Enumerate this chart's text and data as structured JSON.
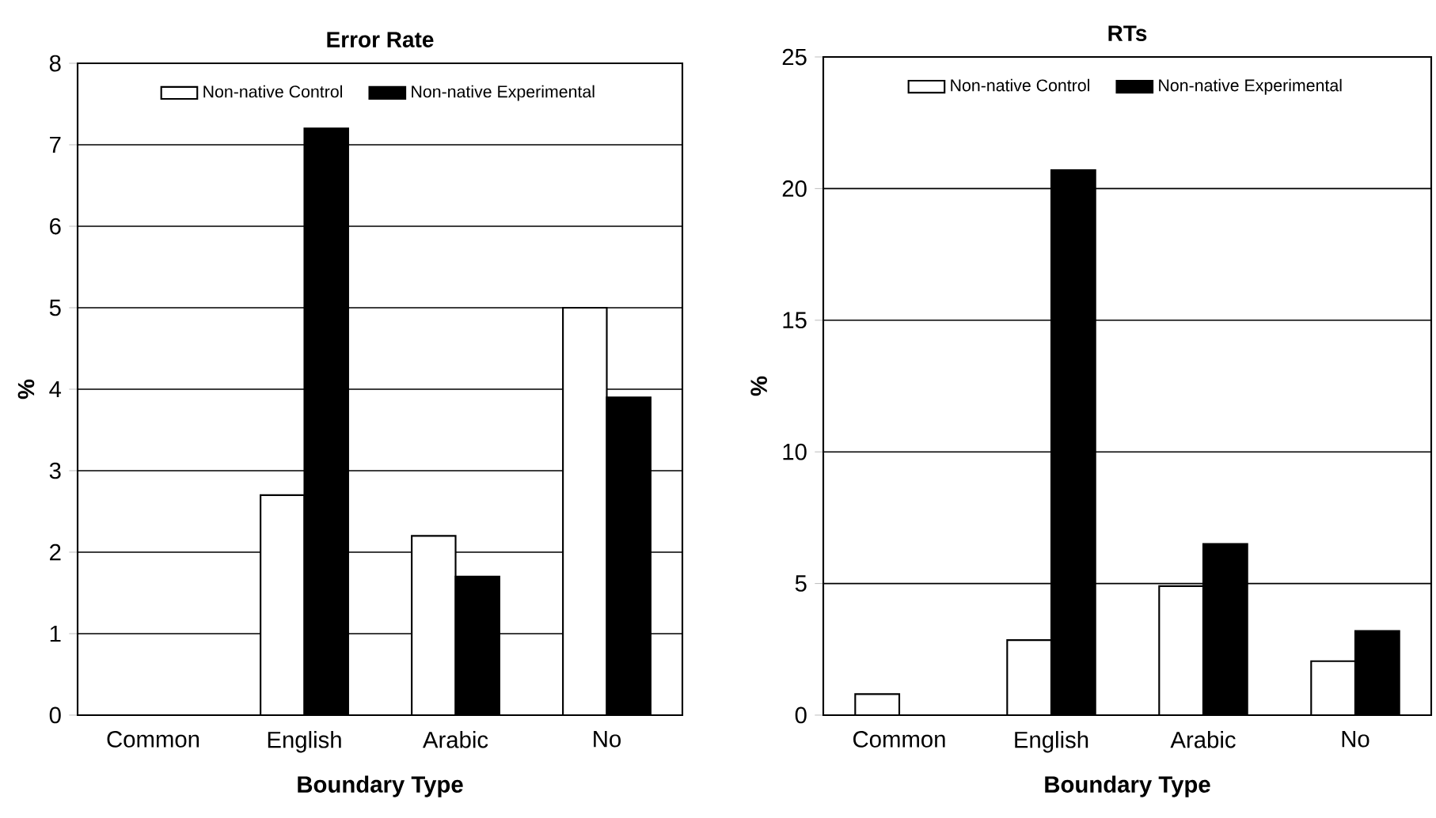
{
  "chart_data": [
    {
      "type": "bar",
      "title": "Error Rate",
      "xlabel": "Boundary Type",
      "ylabel": "%",
      "categories": [
        "Common",
        "English",
        "Arabic",
        "No"
      ],
      "series": [
        {
          "name": "Non-native Control",
          "color": "#ffffff",
          "values": [
            0,
            2.7,
            2.2,
            5.0
          ]
        },
        {
          "name": "Non-native Experimental",
          "color": "#000000",
          "values": [
            0,
            7.2,
            1.7,
            3.9
          ]
        }
      ],
      "ylim": [
        0,
        8
      ],
      "yticks": [
        0,
        1,
        2,
        3,
        4,
        5,
        6,
        7,
        8
      ],
      "grid": "y",
      "legend": "top"
    },
    {
      "type": "bar",
      "title": "RTs",
      "xlabel": "Boundary Type",
      "ylabel": "%",
      "categories": [
        "Common",
        "English",
        "Arabic",
        "No"
      ],
      "series": [
        {
          "name": "Non-native Control",
          "color": "#ffffff",
          "values": [
            0.8,
            2.85,
            4.9,
            2.05
          ]
        },
        {
          "name": "Non-native Experimental",
          "color": "#000000",
          "values": [
            0,
            20.7,
            6.5,
            3.2
          ]
        }
      ],
      "ylim": [
        0,
        25
      ],
      "yticks": [
        0,
        5,
        10,
        15,
        20,
        25
      ],
      "grid": "y",
      "legend": "top"
    }
  ]
}
